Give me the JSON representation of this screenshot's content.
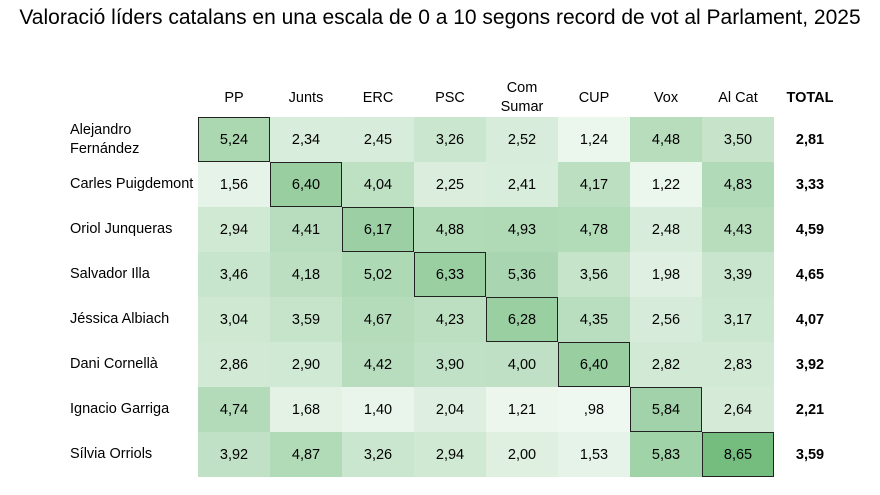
{
  "chart_data": {
    "type": "table",
    "title": "Valoració líders catalans en una escala de 0 a 10 segons record de vot al Parlament, 2025",
    "columns": [
      "PP",
      "Junts",
      "ERC",
      "PSC",
      "Com\nSumar",
      "CUP",
      "Vox",
      "Al Cat"
    ],
    "total_label": "TOTAL",
    "rows": [
      {
        "leader": "Alejandro\nFernández",
        "values": [
          "5,24",
          "2,34",
          "2,45",
          "3,26",
          "2,52",
          "1,24",
          "4,48",
          "3,50"
        ],
        "nums": [
          5.24,
          2.34,
          2.45,
          3.26,
          2.52,
          1.24,
          4.48,
          3.5
        ],
        "total": "2,81"
      },
      {
        "leader": "Carles Puigdemont",
        "values": [
          "1,56",
          "6,40",
          "4,04",
          "2,25",
          "2,41",
          "4,17",
          "1,22",
          "4,83"
        ],
        "nums": [
          1.56,
          6.4,
          4.04,
          2.25,
          2.41,
          4.17,
          1.22,
          4.83
        ],
        "total": "3,33"
      },
      {
        "leader": "Oriol Junqueras",
        "values": [
          "2,94",
          "4,41",
          "6,17",
          "4,88",
          "4,93",
          "4,78",
          "2,48",
          "4,43"
        ],
        "nums": [
          2.94,
          4.41,
          6.17,
          4.88,
          4.93,
          4.78,
          2.48,
          4.43
        ],
        "total": "4,59"
      },
      {
        "leader": "Salvador Illa",
        "values": [
          "3,46",
          "4,18",
          "5,02",
          "6,33",
          "5,36",
          "3,56",
          "1,98",
          "3,39"
        ],
        "nums": [
          3.46,
          4.18,
          5.02,
          6.33,
          5.36,
          3.56,
          1.98,
          3.39
        ],
        "total": "4,65"
      },
      {
        "leader": "Jéssica Albiach",
        "values": [
          "3,04",
          "3,59",
          "4,67",
          "4,23",
          "6,28",
          "4,35",
          "2,56",
          "3,17"
        ],
        "nums": [
          3.04,
          3.59,
          4.67,
          4.23,
          6.28,
          4.35,
          2.56,
          3.17
        ],
        "total": "4,07"
      },
      {
        "leader": "Dani Cornellà",
        "values": [
          "2,86",
          "2,90",
          "4,42",
          "3,90",
          "4,00",
          "6,40",
          "2,82",
          "2,83"
        ],
        "nums": [
          2.86,
          2.9,
          4.42,
          3.9,
          4.0,
          6.4,
          2.82,
          2.83
        ],
        "total": "3,92"
      },
      {
        "leader": "Ignacio Garriga",
        "values": [
          "4,74",
          "1,68",
          "1,40",
          "2,04",
          "1,21",
          ",98",
          "5,84",
          "2,64"
        ],
        "nums": [
          4.74,
          1.68,
          1.4,
          2.04,
          1.21,
          0.98,
          5.84,
          2.64
        ],
        "total": "2,21"
      },
      {
        "leader": "Sílvia Orriols",
        "values": [
          "3,92",
          "4,87",
          "3,26",
          "2,94",
          "2,00",
          "1,53",
          "5,83",
          "8,65"
        ],
        "nums": [
          3.92,
          4.87,
          3.26,
          2.94,
          2.0,
          1.53,
          5.83,
          8.65
        ],
        "total": "3,59"
      }
    ],
    "scale": [
      0,
      10
    ],
    "colors": {
      "low": "#ffffff",
      "high": "#74bd7f",
      "diagonal_border": "#222222"
    }
  }
}
